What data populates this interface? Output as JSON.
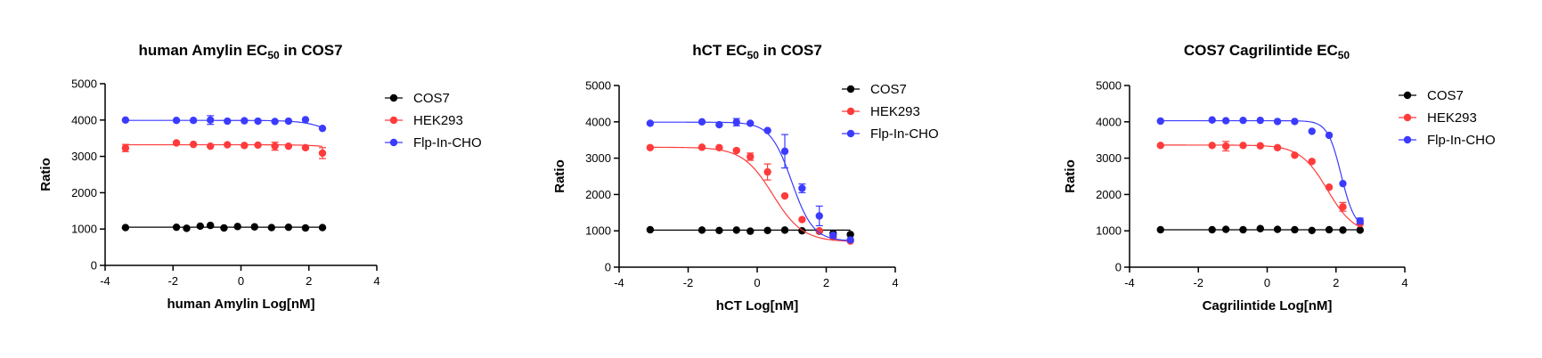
{
  "colors": {
    "COS7": "#000000",
    "HEK293": "#ff3b3b",
    "Flp-In-CHO": "#3b3bff"
  },
  "chart_data": [
    {
      "type": "scatter",
      "title": {
        "main": "human Amylin EC",
        "sub": "50",
        "tail": " in COS7"
      },
      "xlabel": "human Amylin Log[nM]",
      "ylabel": "Ratio",
      "xlim": [
        -4,
        4
      ],
      "ylim": [
        0,
        5000
      ],
      "xticks": [
        "-4",
        "-2",
        "0",
        "2",
        "4"
      ],
      "yticks": [
        "0",
        "1000",
        "2000",
        "3000",
        "4000",
        "5000"
      ],
      "legend_position": "top-right",
      "series": [
        {
          "name": "COS7",
          "x": [
            -3.4,
            -1.9,
            -1.6,
            -1.2,
            -0.9,
            -0.5,
            -0.1,
            0.4,
            0.9,
            1.4,
            1.9,
            2.4
          ],
          "y": [
            1040,
            1050,
            1020,
            1080,
            1100,
            1030,
            1070,
            1060,
            1040,
            1050,
            1030,
            1040
          ],
          "err": [
            0,
            0,
            0,
            0,
            0,
            0,
            0,
            0,
            0,
            0,
            0,
            0
          ],
          "fit": {
            "top": 1050,
            "bottom": 1050,
            "ec50": 0
          }
        },
        {
          "name": "HEK293",
          "x": [
            -3.4,
            -1.9,
            -1.4,
            -0.9,
            -0.4,
            0.1,
            0.5,
            1.0,
            1.4,
            1.9,
            2.4
          ],
          "y": [
            3230,
            3370,
            3330,
            3280,
            3320,
            3300,
            3310,
            3280,
            3280,
            3240,
            3090
          ],
          "err": [
            100,
            0,
            0,
            0,
            0,
            0,
            0,
            110,
            0,
            0,
            150
          ],
          "fit": {
            "top": 3320,
            "bottom": 3000,
            "ec50": 3.2
          }
        },
        {
          "name": "Flp-In-CHO",
          "x": [
            -3.4,
            -1.9,
            -1.4,
            -0.9,
            -0.4,
            0.1,
            0.5,
            1.0,
            1.4,
            1.9,
            2.4
          ],
          "y": [
            4000,
            3990,
            3990,
            4000,
            3970,
            3980,
            3970,
            3960,
            3970,
            4010,
            3770
          ],
          "err": [
            0,
            0,
            0,
            120,
            0,
            0,
            0,
            0,
            0,
            0,
            0
          ],
          "fit": {
            "top": 3990,
            "bottom": 3000,
            "ec50": 3.0
          }
        }
      ]
    },
    {
      "type": "scatter",
      "title": {
        "main": "hCT EC",
        "sub": "50",
        "tail": " in COS7"
      },
      "xlabel": "hCT Log[nM]",
      "ylabel": "Ratio",
      "xlim": [
        -4,
        4
      ],
      "ylim": [
        0,
        5000
      ],
      "xticks": [
        "-4",
        "-2",
        "0",
        "2",
        "4"
      ],
      "yticks": [
        "0",
        "1000",
        "2000",
        "3000",
        "4000",
        "5000"
      ],
      "legend_position": "top-right",
      "series": [
        {
          "name": "COS7",
          "x": [
            -3.1,
            -1.6,
            -1.1,
            -0.6,
            -0.2,
            0.3,
            0.8,
            1.3,
            1.8,
            2.2,
            2.7
          ],
          "y": [
            1030,
            1020,
            1010,
            1020,
            990,
            1010,
            1020,
            1000,
            990,
            930,
            900
          ],
          "err": [
            0,
            0,
            0,
            0,
            0,
            0,
            0,
            0,
            0,
            0,
            0
          ],
          "fit": {
            "top": 1020,
            "bottom": 1020,
            "ec50": 0
          }
        },
        {
          "name": "HEK293",
          "x": [
            -3.1,
            -1.6,
            -1.1,
            -0.6,
            -0.2,
            0.3,
            0.8,
            1.3,
            1.8,
            2.2,
            2.7
          ],
          "y": [
            3290,
            3300,
            3290,
            3210,
            3040,
            2620,
            1960,
            1310,
            1000,
            830,
            720
          ],
          "err": [
            0,
            0,
            0,
            0,
            100,
            220,
            0,
            0,
            0,
            0,
            0
          ],
          "fit": {
            "top": 3300,
            "bottom": 700,
            "ec50": 0.45,
            "hill": 1.0
          }
        },
        {
          "name": "Flp-In-CHO",
          "x": [
            -3.1,
            -1.6,
            -1.1,
            -0.6,
            -0.2,
            0.3,
            0.8,
            1.3,
            1.8,
            2.2,
            2.7
          ],
          "y": [
            3960,
            4000,
            3920,
            3990,
            3960,
            3760,
            3190,
            2170,
            1410,
            880,
            750
          ],
          "err": [
            0,
            0,
            0,
            100,
            0,
            0,
            460,
            120,
            270,
            0,
            0
          ],
          "fit": {
            "top": 3990,
            "bottom": 720,
            "ec50": 1.0,
            "hill": 1.4
          }
        }
      ]
    },
    {
      "type": "scatter",
      "title": {
        "main": "COS7 Cagrilintide EC",
        "sub": "50",
        "tail": ""
      },
      "xlabel": "Cagrilintide Log[nM]",
      "ylabel": "Ratio",
      "xlim": [
        -4,
        4
      ],
      "ylim": [
        0,
        5000
      ],
      "xticks": [
        "-4",
        "-2",
        "0",
        "2",
        "4"
      ],
      "yticks": [
        "0",
        "1000",
        "2000",
        "3000",
        "4000",
        "5000"
      ],
      "legend_position": "top-right",
      "series": [
        {
          "name": "COS7",
          "x": [
            -3.1,
            -1.6,
            -1.2,
            -0.7,
            -0.2,
            0.3,
            0.8,
            1.3,
            1.8,
            2.2,
            2.7
          ],
          "y": [
            1030,
            1030,
            1040,
            1030,
            1060,
            1040,
            1030,
            1010,
            1030,
            1020,
            1020
          ],
          "err": [
            0,
            0,
            0,
            0,
            0,
            0,
            0,
            0,
            0,
            0,
            0
          ],
          "fit": {
            "top": 1030,
            "bottom": 1030,
            "ec50": 0
          }
        },
        {
          "name": "HEK293",
          "x": [
            -3.1,
            -1.6,
            -1.2,
            -0.7,
            -0.2,
            0.3,
            0.8,
            1.3,
            1.8,
            2.2,
            2.7
          ],
          "y": [
            3350,
            3350,
            3330,
            3350,
            3340,
            3290,
            3080,
            2910,
            2200,
            1660,
            1200
          ],
          "err": [
            0,
            0,
            130,
            0,
            0,
            0,
            0,
            0,
            0,
            120,
            0
          ],
          "fit": {
            "top": 3360,
            "bottom": 900,
            "ec50": 1.75,
            "hill": 1.1
          }
        },
        {
          "name": "Flp-In-CHO",
          "x": [
            -3.1,
            -1.6,
            -1.2,
            -0.7,
            -0.2,
            0.3,
            0.8,
            1.3,
            1.8,
            2.2,
            2.7
          ],
          "y": [
            4020,
            4050,
            4030,
            4040,
            4040,
            4010,
            4010,
            3740,
            3630,
            2300,
            1270
          ],
          "err": [
            0,
            0,
            0,
            0,
            0,
            0,
            0,
            0,
            0,
            0,
            80
          ],
          "fit": {
            "top": 4030,
            "bottom": 1050,
            "ec50": 2.15,
            "hill": 2.2
          }
        }
      ]
    }
  ]
}
